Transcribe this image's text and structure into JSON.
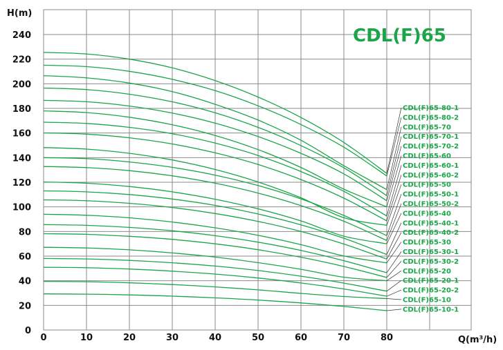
{
  "chart_data": {
    "type": "line",
    "title": "CDL(F)65",
    "xlabel": "Q(m³/h)",
    "ylabel": "H(m)",
    "xlim": [
      0,
      80
    ],
    "ylim": [
      0,
      250
    ],
    "x_ticks": [
      0,
      10,
      20,
      30,
      40,
      50,
      60,
      70,
      80
    ],
    "y_ticks": [
      0,
      20,
      40,
      60,
      80,
      100,
      120,
      140,
      160,
      180,
      200,
      220,
      240
    ],
    "grid": true,
    "legend": "right-side labels with leader lines",
    "colors": {
      "curve": "#1aa548",
      "title": "#1aa548",
      "label": "#1aa548",
      "leader": "#333333",
      "grid": "#8a8a8a"
    },
    "x": [
      0,
      10,
      20,
      30,
      40,
      50,
      60,
      70,
      80
    ],
    "series": [
      {
        "name": "CDL(F)65-80-1",
        "values": [
          225.5,
          224.2,
          220.0,
          212.9,
          202.6,
          189.2,
          172.6,
          152.3,
          127.2
        ]
      },
      {
        "name": "CDL(F)65-80-2",
        "values": [
          215.1,
          213.9,
          210.1,
          203.6,
          194.4,
          182.1,
          166.9,
          148.5,
          125.1
        ]
      },
      {
        "name": "CDL(F)65-70",
        "values": [
          206.6,
          204.8,
          200.6,
          193.6,
          183.3,
          170.5,
          154.1,
          133.4,
          114.0
        ]
      },
      {
        "name": "CDL(F)65-70-1",
        "values": [
          196.5,
          195.3,
          191.5,
          185.3,
          176.4,
          164.6,
          149.8,
          131.7,
          109.1
        ]
      },
      {
        "name": "CDL(F)65-70-2",
        "values": [
          186.5,
          185.4,
          181.9,
          176.2,
          168.0,
          157.1,
          143.5,
          126.8,
          105.0
        ]
      },
      {
        "name": "CDL(F)65-60",
        "values": [
          178.0,
          176.6,
          172.8,
          166.7,
          158.0,
          146.5,
          132.0,
          114.4,
          100.0
        ]
      },
      {
        "name": "CDL(F)65-60-1",
        "values": [
          168.8,
          167.8,
          164.6,
          159.4,
          151.8,
          141.7,
          128.7,
          112.6,
          92.6
        ]
      },
      {
        "name": "CDL(F)65-60-2",
        "values": [
          160.1,
          159.1,
          156.1,
          151.1,
          143.9,
          134.4,
          122.2,
          107.1,
          88.6
        ]
      },
      {
        "name": "CDL(F)65-50",
        "values": [
          148.2,
          146.9,
          143.5,
          138.1,
          130.4,
          120.2,
          107.4,
          91.2,
          85.0
        ]
      },
      {
        "name": "CDL(F)65-50-1",
        "values": [
          140.0,
          139.2,
          136.5,
          132.1,
          125.8,
          117.3,
          106.5,
          93.0,
          76.6
        ]
      },
      {
        "name": "CDL(F)65-50-2",
        "values": [
          132.8,
          131.9,
          129.4,
          125.2,
          119.2,
          111.2,
          101.0,
          88.3,
          72.7
        ]
      },
      {
        "name": "CDL(F)65-40",
        "values": [
          120.2,
          119.2,
          116.5,
          112.2,
          106.2,
          98.4,
          88.6,
          76.2,
          70.0
        ]
      },
      {
        "name": "CDL(F)65-40-1",
        "values": [
          113.0,
          112.2,
          110.0,
          106.4,
          101.2,
          94.2,
          85.4,
          74.5,
          61.3
        ]
      },
      {
        "name": "CDL(F)65-40-2",
        "values": [
          105.7,
          105.0,
          102.9,
          99.5,
          94.6,
          88.2,
          80.0,
          69.8,
          57.6
        ]
      },
      {
        "name": "CDL(F)65-30",
        "values": [
          94.0,
          93.2,
          91.1,
          87.7,
          83.0,
          76.9,
          69.3,
          60.1,
          54.5
        ]
      },
      {
        "name": "CDL(F)65-30-1",
        "values": [
          85.6,
          85.0,
          83.3,
          80.6,
          76.6,
          71.3,
          64.6,
          56.3,
          46.5
        ]
      },
      {
        "name": "CDL(F)65-30-2",
        "values": [
          78.2,
          77.7,
          76.1,
          73.6,
          70.0,
          65.2,
          59.1,
          51.6,
          42.7
        ]
      },
      {
        "name": "CDL(F)65-20",
        "values": [
          67.2,
          66.6,
          65.1,
          62.6,
          59.2,
          54.7,
          49.3,
          42.9,
          40.0
        ]
      },
      {
        "name": "CDL(F)65-20-1",
        "values": [
          58.1,
          57.7,
          56.5,
          54.6,
          51.9,
          48.3,
          43.7,
          38.1,
          31.5
        ]
      },
      {
        "name": "CDL(F)65-20-2",
        "values": [
          50.9,
          50.6,
          49.5,
          47.8,
          45.4,
          42.2,
          38.2,
          33.3,
          27.4
        ]
      },
      {
        "name": "CDL(F)65-10",
        "values": [
          39.5,
          39.2,
          38.3,
          36.9,
          35.0,
          32.6,
          29.7,
          27.2,
          25.5
        ]
      },
      {
        "name": "CDL(F)65-10-1",
        "values": [
          29.3,
          29.1,
          28.5,
          27.5,
          26.1,
          24.3,
          22.0,
          19.1,
          15.7
        ]
      }
    ]
  }
}
